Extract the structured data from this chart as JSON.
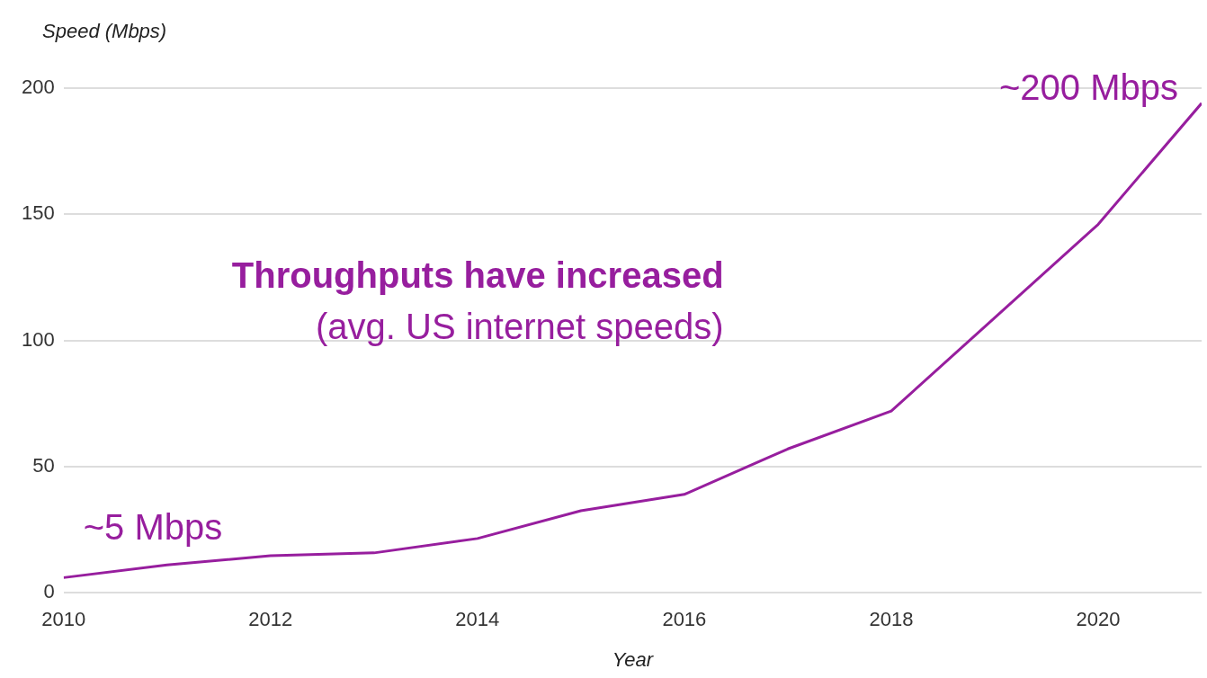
{
  "chart_data": {
    "type": "line",
    "title": "Throughputs have increased",
    "subtitle": "(avg. US internet speeds)",
    "xlabel": "Year",
    "ylabel": "Speed (Mbps)",
    "x": [
      2010,
      2011,
      2012,
      2013,
      2014,
      2015,
      2016,
      2017,
      2018,
      2019,
      2020,
      2021
    ],
    "series": [
      {
        "color": "#971e9e",
        "values": [
          6,
          11,
          14.7,
          15.8,
          21.5,
          32.5,
          39,
          57,
          72,
          109,
          146,
          194
        ]
      }
    ],
    "xlim": [
      2010,
      2021
    ],
    "xticks": [
      2010,
      2012,
      2014,
      2016,
      2018,
      2020
    ],
    "ylim": [
      0,
      200
    ],
    "yticks": [
      0,
      50,
      100,
      150,
      200
    ],
    "grid": "y",
    "legend": false,
    "marker": "none",
    "line_style": "solid",
    "annotations": [
      {
        "text": "~5 Mbps",
        "x": 2010,
        "y": 6
      },
      {
        "text": "~200 Mbps",
        "x": 2021,
        "y": 194
      }
    ]
  }
}
